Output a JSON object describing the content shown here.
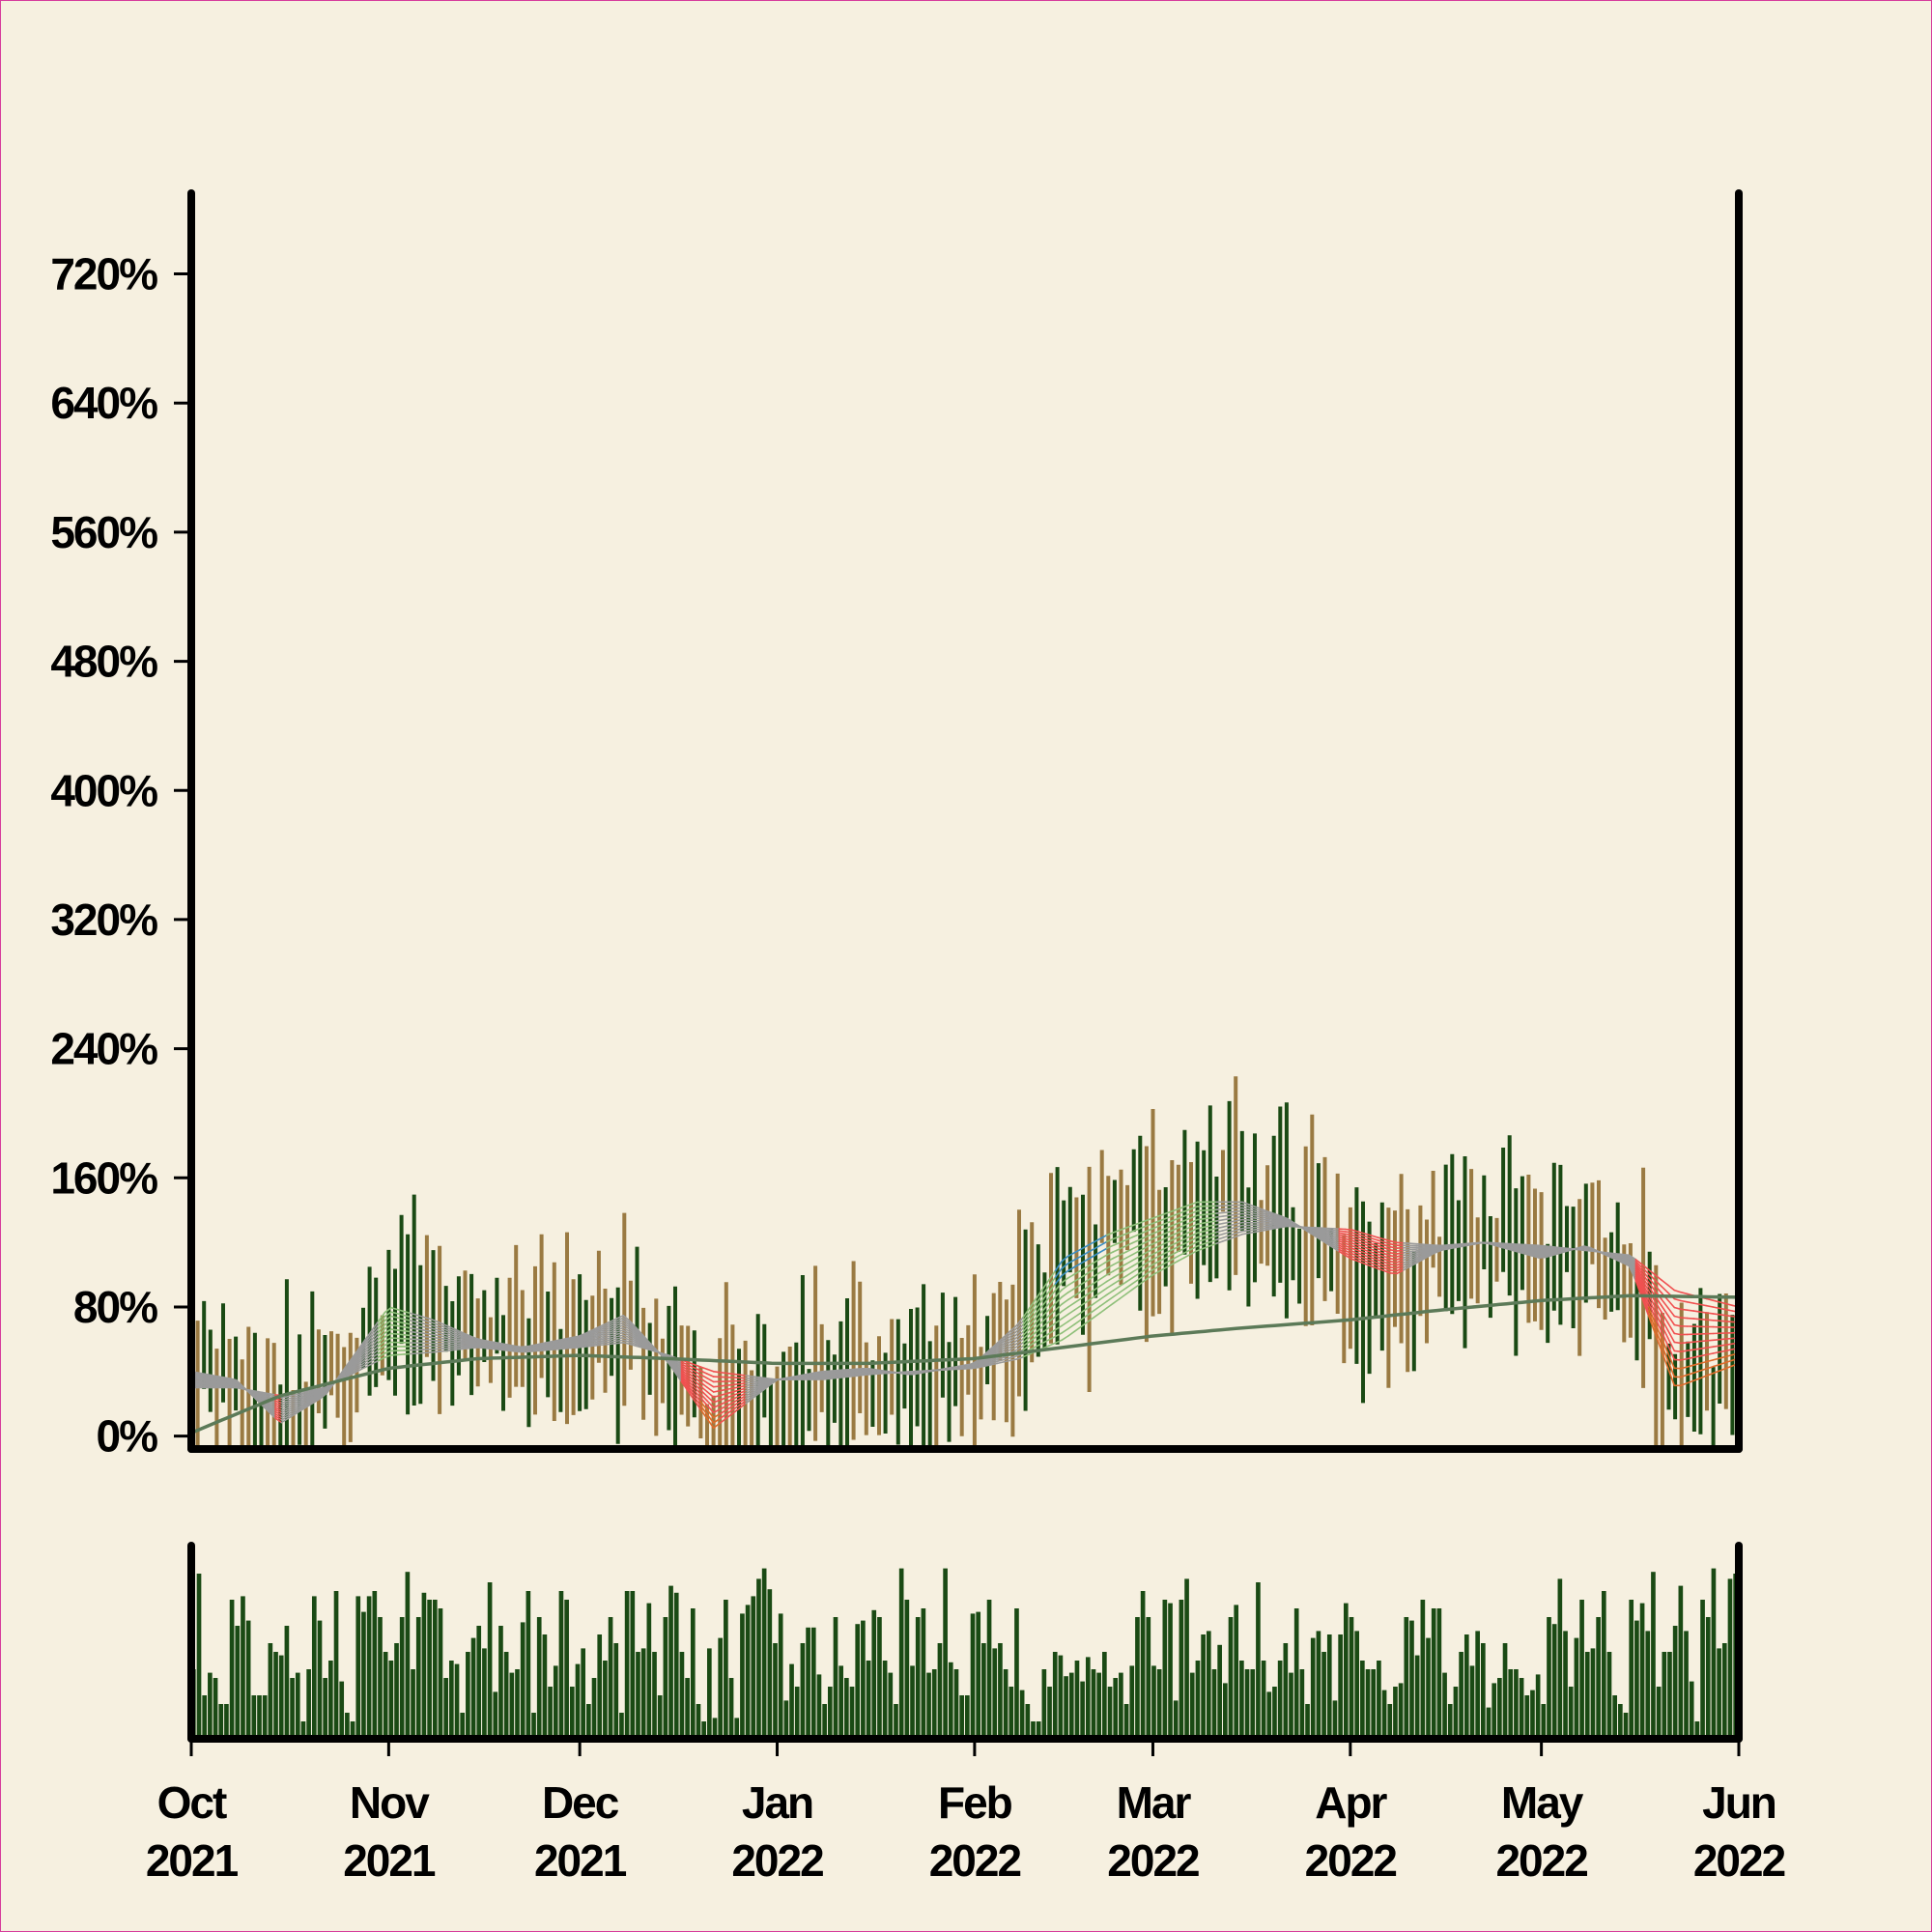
{
  "chart_data": {
    "type": "line",
    "price_panel": {
      "y_unit": "%",
      "ylim": [
        -8,
        770
      ],
      "y_ticks": [
        0,
        80,
        160,
        240,
        320,
        400,
        480,
        560,
        640,
        720
      ],
      "y_tick_labels": [
        "0%",
        "80%",
        "160%",
        "240%",
        "320%",
        "400%",
        "480%",
        "560%",
        "640%",
        "720%"
      ],
      "bars": {
        "name_up_color": "#1a4a14",
        "down_color": "#9a7a42",
        "date_range": [
          "2021-10-01",
          "2022-06-01"
        ]
      },
      "series": [
        {
          "type": "ema-ribbon",
          "colors": {
            "neutral": "#9a9a9a",
            "bullish": "#8fc07a",
            "bearish": "#f05050",
            "strong_bull": "#3b8fc4",
            "strong_bear": "#e06a2a"
          },
          "dates": [
            "2021-10-01",
            "2021-10-08",
            "2021-10-15",
            "2021-10-22",
            "2021-11-01",
            "2021-11-08",
            "2021-11-15",
            "2021-11-22",
            "2021-12-01",
            "2021-12-08",
            "2021-12-15",
            "2021-12-22",
            "2022-01-01",
            "2022-01-08",
            "2022-01-15",
            "2022-01-22",
            "2022-02-01",
            "2022-02-08",
            "2022-02-15",
            "2022-02-22",
            "2022-03-01",
            "2022-03-08",
            "2022-03-15",
            "2022-03-22",
            "2022-04-01",
            "2022-04-08",
            "2022-04-15",
            "2022-04-22",
            "2022-05-01",
            "2022-05-08",
            "2022-05-15",
            "2022-05-22",
            "2022-06-01"
          ],
          "fast_values": [
            40,
            35,
            8,
            25,
            80,
            72,
            60,
            55,
            62,
            75,
            45,
            5,
            35,
            40,
            42,
            38,
            45,
            70,
            110,
            125,
            135,
            145,
            145,
            135,
            110,
            100,
            115,
            120,
            110,
            118,
            105,
            30,
            45
          ],
          "slow_values": [
            30,
            30,
            25,
            30,
            50,
            52,
            55,
            52,
            55,
            58,
            50,
            40,
            35,
            35,
            38,
            40,
            42,
            48,
            60,
            80,
            100,
            115,
            125,
            130,
            128,
            120,
            118,
            120,
            118,
            115,
            112,
            90,
            80
          ]
        },
        {
          "type": "moving-average",
          "color": "#5c7a58",
          "dates": [
            "2021-10-01",
            "2021-10-15",
            "2021-11-01",
            "2021-11-15",
            "2021-12-01",
            "2021-12-15",
            "2022-01-01",
            "2022-01-15",
            "2022-02-01",
            "2022-02-15",
            "2022-03-01",
            "2022-03-15",
            "2022-04-01",
            "2022-04-15",
            "2022-05-01",
            "2022-05-15",
            "2022-06-01"
          ],
          "values": [
            2,
            25,
            42,
            48,
            50,
            48,
            45,
            45,
            48,
            55,
            62,
            67,
            72,
            78,
            84,
            87,
            86
          ]
        }
      ]
    },
    "volume_panel": {
      "color": "#1a4a14",
      "values": [
        40,
        95,
        25,
        38,
        35,
        20,
        20,
        80,
        65,
        82,
        68,
        25,
        25,
        25,
        55,
        50,
        48,
        65,
        35,
        38,
        10,
        40,
        82,
        68,
        35,
        45,
        85,
        33,
        15,
        10,
        82,
        73,
        82,
        85,
        70,
        50,
        45,
        55,
        70,
        96,
        40,
        70,
        84,
        80,
        80,
        75,
        35,
        45,
        43,
        15,
        50,
        58,
        65,
        52,
        90,
        27,
        65,
        50,
        38,
        40,
        67,
        85,
        15,
        70,
        60,
        30,
        42,
        85,
        80,
        30,
        43,
        52,
        20,
        35,
        60,
        45,
        70,
        55,
        15,
        85,
        85,
        50,
        52,
        78,
        50,
        25,
        70,
        88,
        84,
        50,
        35,
        75,
        20,
        10,
        52,
        12,
        58,
        80,
        35,
        12,
        72,
        77,
        82,
        92,
        98,
        86,
        55,
        72,
        22,
        43,
        30,
        55,
        64,
        64,
        37,
        20,
        30,
        70,
        42,
        35,
        30,
        66,
        68,
        45,
        74,
        70,
        45,
        38,
        20,
        98,
        80,
        42,
        70,
        75,
        38,
        40,
        55,
        98,
        44,
        40,
        25,
        25,
        72,
        73,
        55,
        80,
        52,
        55,
        40,
        30,
        75,
        28,
        20,
        10,
        10,
        40,
        30,
        50,
        48,
        36,
        38,
        45,
        33,
        47,
        40,
        38,
        50,
        30,
        35,
        38,
        20,
        42,
        70,
        85,
        70,
        42,
        40,
        80,
        78,
        22,
        80,
        92,
        38,
        45,
        60,
        62,
        40,
        54,
        32,
        70,
        77,
        45,
        40,
        40,
        90,
        45,
        27,
        30,
        45,
        55,
        38,
        75,
        40,
        20,
        58,
        62,
        50,
        60,
        22,
        60,
        78,
        70,
        62,
        45,
        40,
        40,
        45,
        28,
        20,
        30,
        32,
        70,
        68,
        48,
        80,
        58,
        75,
        75,
        38,
        20,
        30,
        50,
        60,
        42,
        62,
        55,
        18,
        32,
        35,
        55,
        40,
        40,
        35,
        25,
        28,
        37,
        20,
        70,
        66,
        92,
        62,
        30,
        58,
        80,
        50,
        52,
        70,
        85,
        50,
        25,
        20,
        15,
        80,
        68,
        78,
        62,
        96,
        30,
        50,
        50,
        65,
        88,
        62,
        33,
        10,
        80,
        70,
        98,
        52,
        55,
        92,
        95
      ]
    },
    "x_ticks": [
      "2021-10",
      "2021-11",
      "2021-12",
      "2022-01",
      "2022-02",
      "2022-03",
      "2022-04",
      "2022-05",
      "2022-06"
    ],
    "x_tick_labels": [
      {
        "month": "Oct",
        "year": "2021"
      },
      {
        "month": "Nov",
        "year": "2021"
      },
      {
        "month": "Dec",
        "year": "2021"
      },
      {
        "month": "Jan",
        "year": "2022"
      },
      {
        "month": "Feb",
        "year": "2022"
      },
      {
        "month": "Mar",
        "year": "2022"
      },
      {
        "month": "Apr",
        "year": "2022"
      },
      {
        "month": "May",
        "year": "2022"
      },
      {
        "month": "Jun",
        "year": "2022"
      }
    ],
    "title": "",
    "xlabel": "",
    "ylabel": "",
    "legend": "none",
    "grid": false
  }
}
